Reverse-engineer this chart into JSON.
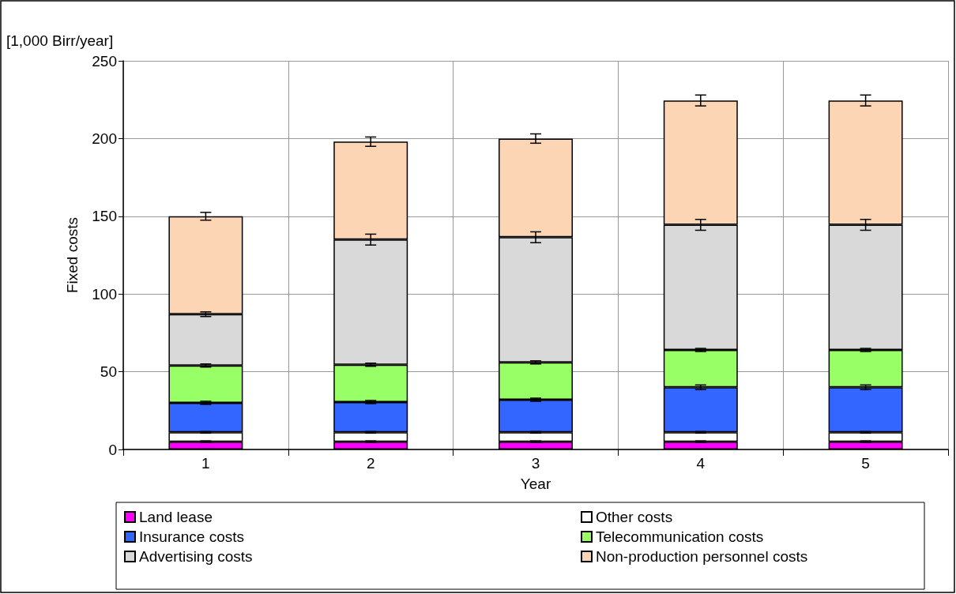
{
  "chart_data": {
    "type": "bar",
    "stacked": true,
    "xlabel": "Year",
    "ylabel": "Fixed costs",
    "annotations": [
      "[1,000 Birr/year]"
    ],
    "categories": [
      "1",
      "2",
      "3",
      "4",
      "5"
    ],
    "series": [
      {
        "name": "Land lease",
        "color": "#ff00ff",
        "values": [
          5,
          5,
          5,
          5,
          5
        ],
        "errors": [
          0.5,
          0.5,
          0.5,
          0.5,
          0.5
        ]
      },
      {
        "name": "Other costs",
        "color": "#ffffff",
        "values": [
          6,
          6,
          6,
          6,
          6
        ],
        "errors": [
          0.5,
          0.5,
          0.5,
          0.5,
          0.5
        ]
      },
      {
        "name": "Insurance costs",
        "color": "#3366ff",
        "values": [
          19,
          19.5,
          21,
          29,
          29
        ],
        "errors": [
          1,
          1,
          1,
          1.5,
          1.5
        ]
      },
      {
        "name": "Telecommunication costs",
        "color": "#99ff66",
        "values": [
          24,
          24,
          24,
          24,
          24
        ],
        "errors": [
          1,
          1,
          1,
          1,
          1
        ]
      },
      {
        "name": "Advertising costs",
        "color": "#d9d9d9",
        "values": [
          33,
          80.5,
          80.5,
          80.5,
          80.5
        ],
        "errors": [
          1.5,
          3.5,
          3.5,
          3.5,
          3.5
        ]
      },
      {
        "name": "Non-production personnel costs",
        "color": "#fcd5b4",
        "values": [
          63,
          63,
          63.5,
          80,
          80
        ],
        "errors": [
          2.5,
          3,
          3,
          3.5,
          3.5
        ]
      }
    ],
    "ylim": [
      0,
      250
    ],
    "yticks": [
      0,
      50,
      100,
      150,
      200,
      250
    ],
    "grid": true,
    "legend": "bottom"
  }
}
